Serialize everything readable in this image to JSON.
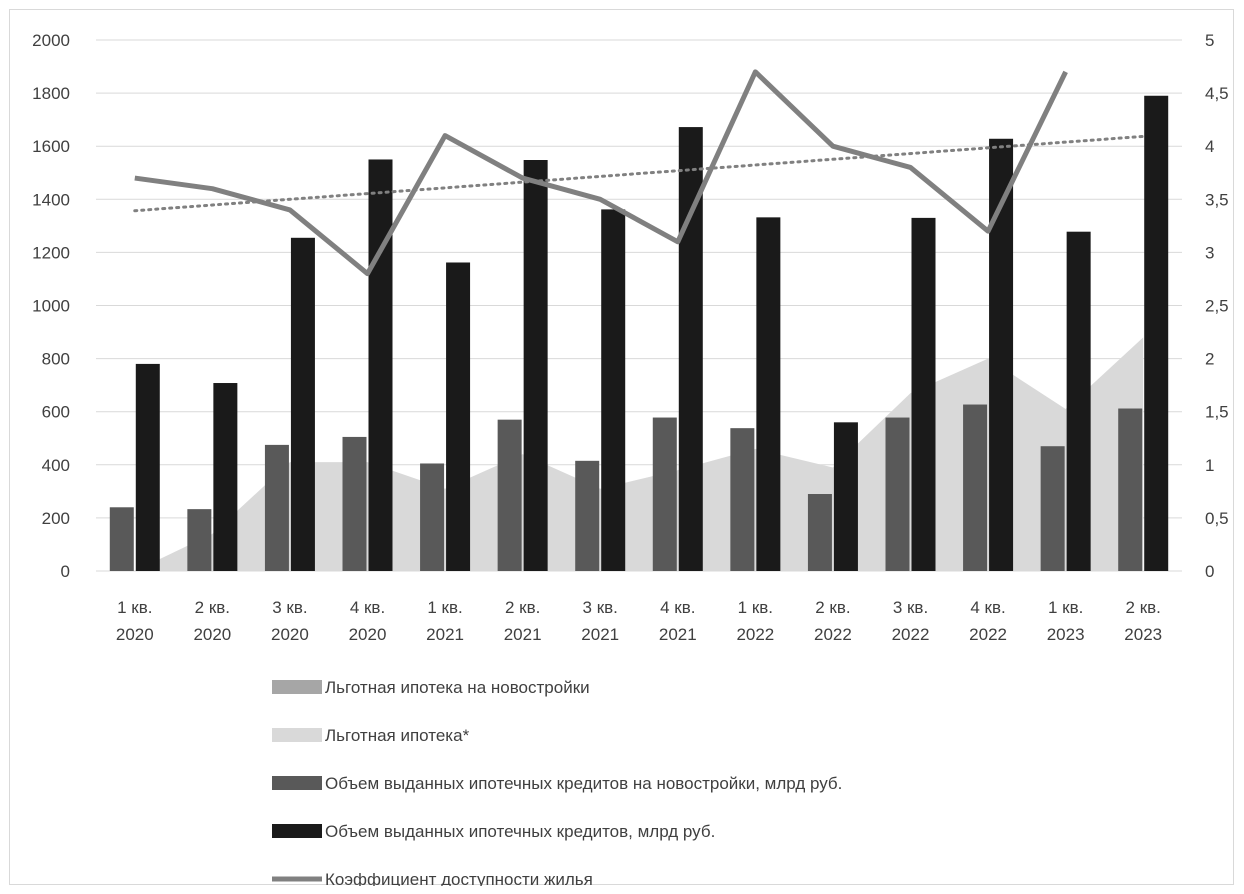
{
  "chart_data": {
    "type": "bar",
    "categories": [
      [
        "1 кв.",
        "2020"
      ],
      [
        "2 кв.",
        "2020"
      ],
      [
        "3 кв.",
        "2020"
      ],
      [
        "4 кв.",
        "2020"
      ],
      [
        "1 кв.",
        "2021"
      ],
      [
        "2 кв.",
        "2021"
      ],
      [
        "3 кв.",
        "2021"
      ],
      [
        "4 кв.",
        "2021"
      ],
      [
        "1 кв.",
        "2022"
      ],
      [
        "2 кв.",
        "2022"
      ],
      [
        "3 кв.",
        "2022"
      ],
      [
        "4 кв.",
        "2022"
      ],
      [
        "1 кв.",
        "2023"
      ],
      [
        "2 кв.",
        "2023"
      ]
    ],
    "y_left": {
      "min": 0,
      "max": 2000,
      "step": 200,
      "tick_labels": [
        "0",
        "200",
        "400",
        "600",
        "800",
        "1000",
        "1200",
        "1400",
        "1600",
        "1800",
        "2000"
      ]
    },
    "y_right": {
      "min": 0,
      "max": 5,
      "step": 0.5,
      "tick_labels": [
        "0",
        "0,5",
        "1",
        "1,5",
        "2",
        "2,5",
        "3",
        "3,5",
        "4",
        "4,5",
        "5"
      ]
    },
    "grid": true,
    "legend_position": "bottom",
    "series": [
      {
        "name": "Льготная ипотека на новостройки",
        "type": "area",
        "axis": "left",
        "color": "#a6a6a6",
        "values": [
          0,
          0,
          0,
          0,
          0,
          0,
          0,
          0,
          0,
          0,
          0,
          0,
          0,
          0
        ]
      },
      {
        "name": "Льготная ипотека*",
        "type": "area",
        "axis": "left",
        "color": "#d9d9d9",
        "values": [
          0,
          140,
          410,
          410,
          310,
          440,
          310,
          380,
          460,
          390,
          670,
          800,
          610,
          880
        ]
      },
      {
        "name": "Объем выданных ипотечных кредитов на новостройки, млрд руб.",
        "type": "bar",
        "axis": "left",
        "color": "#595959",
        "values": [
          240,
          233,
          475,
          505,
          405,
          570,
          415,
          578,
          538,
          290,
          578,
          627,
          470,
          612
        ]
      },
      {
        "name": "Объем выданных ипотечных кредитов, млрд руб.",
        "type": "bar",
        "axis": "left",
        "color": "#1a1a1a",
        "values": [
          780,
          708,
          1255,
          1550,
          1162,
          1548,
          1362,
          1672,
          1332,
          560,
          1330,
          1628,
          1278,
          1790
        ]
      },
      {
        "name": "Коэффициент доступности жилья",
        "type": "line",
        "axis": "right",
        "color": "#808080",
        "values": [
          3.7,
          3.6,
          3.4,
          2.8,
          4.1,
          3.7,
          3.5,
          3.1,
          4.7,
          4.0,
          3.8,
          3.2,
          4.7,
          null
        ]
      }
    ],
    "trendline": {
      "type": "linear",
      "of_series": "Коэффициент доступности жилья",
      "style": "dotted",
      "color": "#808080"
    }
  }
}
